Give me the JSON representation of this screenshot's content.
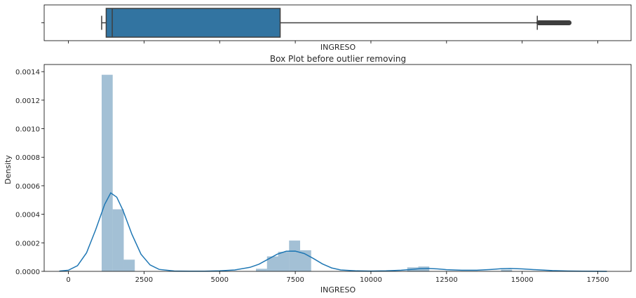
{
  "chart_data": [
    {
      "type": "box",
      "title": "",
      "xlabel": "INGRESO",
      "xlim": [
        -800,
        18600
      ],
      "box": {
        "whisker_low": 1100,
        "q1": 1250,
        "median": 1450,
        "q3": 7000,
        "whisker_high": 15500,
        "outliers_range": [
          15550,
          16550
        ]
      },
      "color": "#3274a1"
    },
    {
      "type": "histogram",
      "title": "Box Plot before outlier removing",
      "xlabel": "INGRESO",
      "ylabel": "Density",
      "xlim": [
        -800,
        18600
      ],
      "ylim": [
        0,
        0.00145
      ],
      "xticks": [
        0,
        2500,
        5000,
        7500,
        10000,
        12500,
        15000,
        17500
      ],
      "xtick_labels": [
        "0",
        "2500",
        "5000",
        "7500",
        "10000",
        "12500",
        "15000",
        "17500"
      ],
      "yticks": [
        0,
        0.0002,
        0.0004,
        0.0006,
        0.0008,
        0.001,
        0.0012,
        0.0014
      ],
      "ytick_labels": [
        "0.0000",
        "0.0002",
        "0.0004",
        "0.0006",
        "0.0008",
        "0.0010",
        "0.0012",
        "0.0014"
      ],
      "bin_edges": [
        1100,
        1465,
        1830,
        2195,
        6200,
        6565,
        6930,
        7295,
        7660,
        8025,
        11200,
        11565,
        11930,
        14300,
        14665
      ],
      "density": [
        0.001378,
        0.000435,
        8.2e-05,
        0,
        1.8e-05,
        0.000105,
        0.000137,
        0.000216,
        0.000148,
        0,
        2.8e-05,
        3.4e-05,
        0,
        1.2e-05
      ],
      "kde": {
        "x": [
          -300,
          0,
          300,
          600,
          900,
          1200,
          1400,
          1600,
          1800,
          2100,
          2400,
          2700,
          3000,
          3500,
          4000,
          4500,
          5000,
          5500,
          6000,
          6300,
          6600,
          6900,
          7200,
          7500,
          7800,
          8100,
          8400,
          8700,
          9000,
          9500,
          10000,
          10500,
          11000,
          11300,
          11600,
          11900,
          12200,
          12500,
          13000,
          13500,
          14000,
          14300,
          14600,
          15000,
          15500,
          16000,
          16500,
          17000,
          17500,
          17800
        ],
        "y": [
          2e-06,
          8e-06,
          4e-05,
          0.00013,
          0.00029,
          0.00047,
          0.00055,
          0.00052,
          0.00043,
          0.00026,
          0.00012,
          4.5e-05,
          1.4e-05,
          2.5e-06,
          1e-06,
          1.5e-06,
          3.5e-06,
          1e-05,
          2.8e-05,
          5e-05,
          8.5e-05,
          0.00012,
          0.000141,
          0.000142,
          0.000125,
          9e-05,
          5.2e-05,
          2.4e-05,
          1e-05,
          3.5e-06,
          2e-06,
          3.5e-06,
          8e-06,
          1.3e-05,
          1.8e-05,
          2e-05,
          1.7e-05,
          1.2e-05,
          8e-06,
          8e-06,
          1.4e-05,
          1.8e-05,
          2e-05,
          1.7e-05,
          1.1e-05,
          5.5e-06,
          2.5e-06,
          1.2e-06,
          5e-07,
          2e-07
        ]
      },
      "hist_color": "#3274a1",
      "kde_color": "#1f77b4"
    }
  ]
}
